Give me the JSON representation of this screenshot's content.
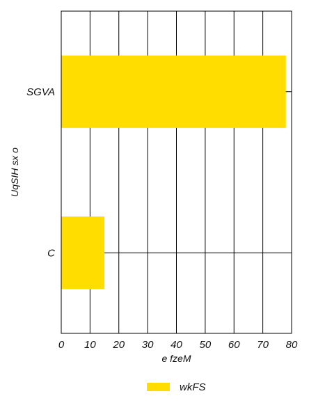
{
  "chart_data": {
    "type": "bar",
    "orientation": "horizontal",
    "categories": [
      "SGVA",
      "C"
    ],
    "series": [
      {
        "name": "wkFS",
        "values": [
          78,
          15
        ],
        "color": "#FFDD00"
      }
    ],
    "xlabel": "e fzeM",
    "ylabel": "UqSIH sx o",
    "xlim": [
      0,
      80
    ],
    "xticks": [
      0,
      10,
      20,
      30,
      40,
      50,
      60,
      70,
      80
    ],
    "grid": "vertical",
    "legend": "bottom-center"
  }
}
